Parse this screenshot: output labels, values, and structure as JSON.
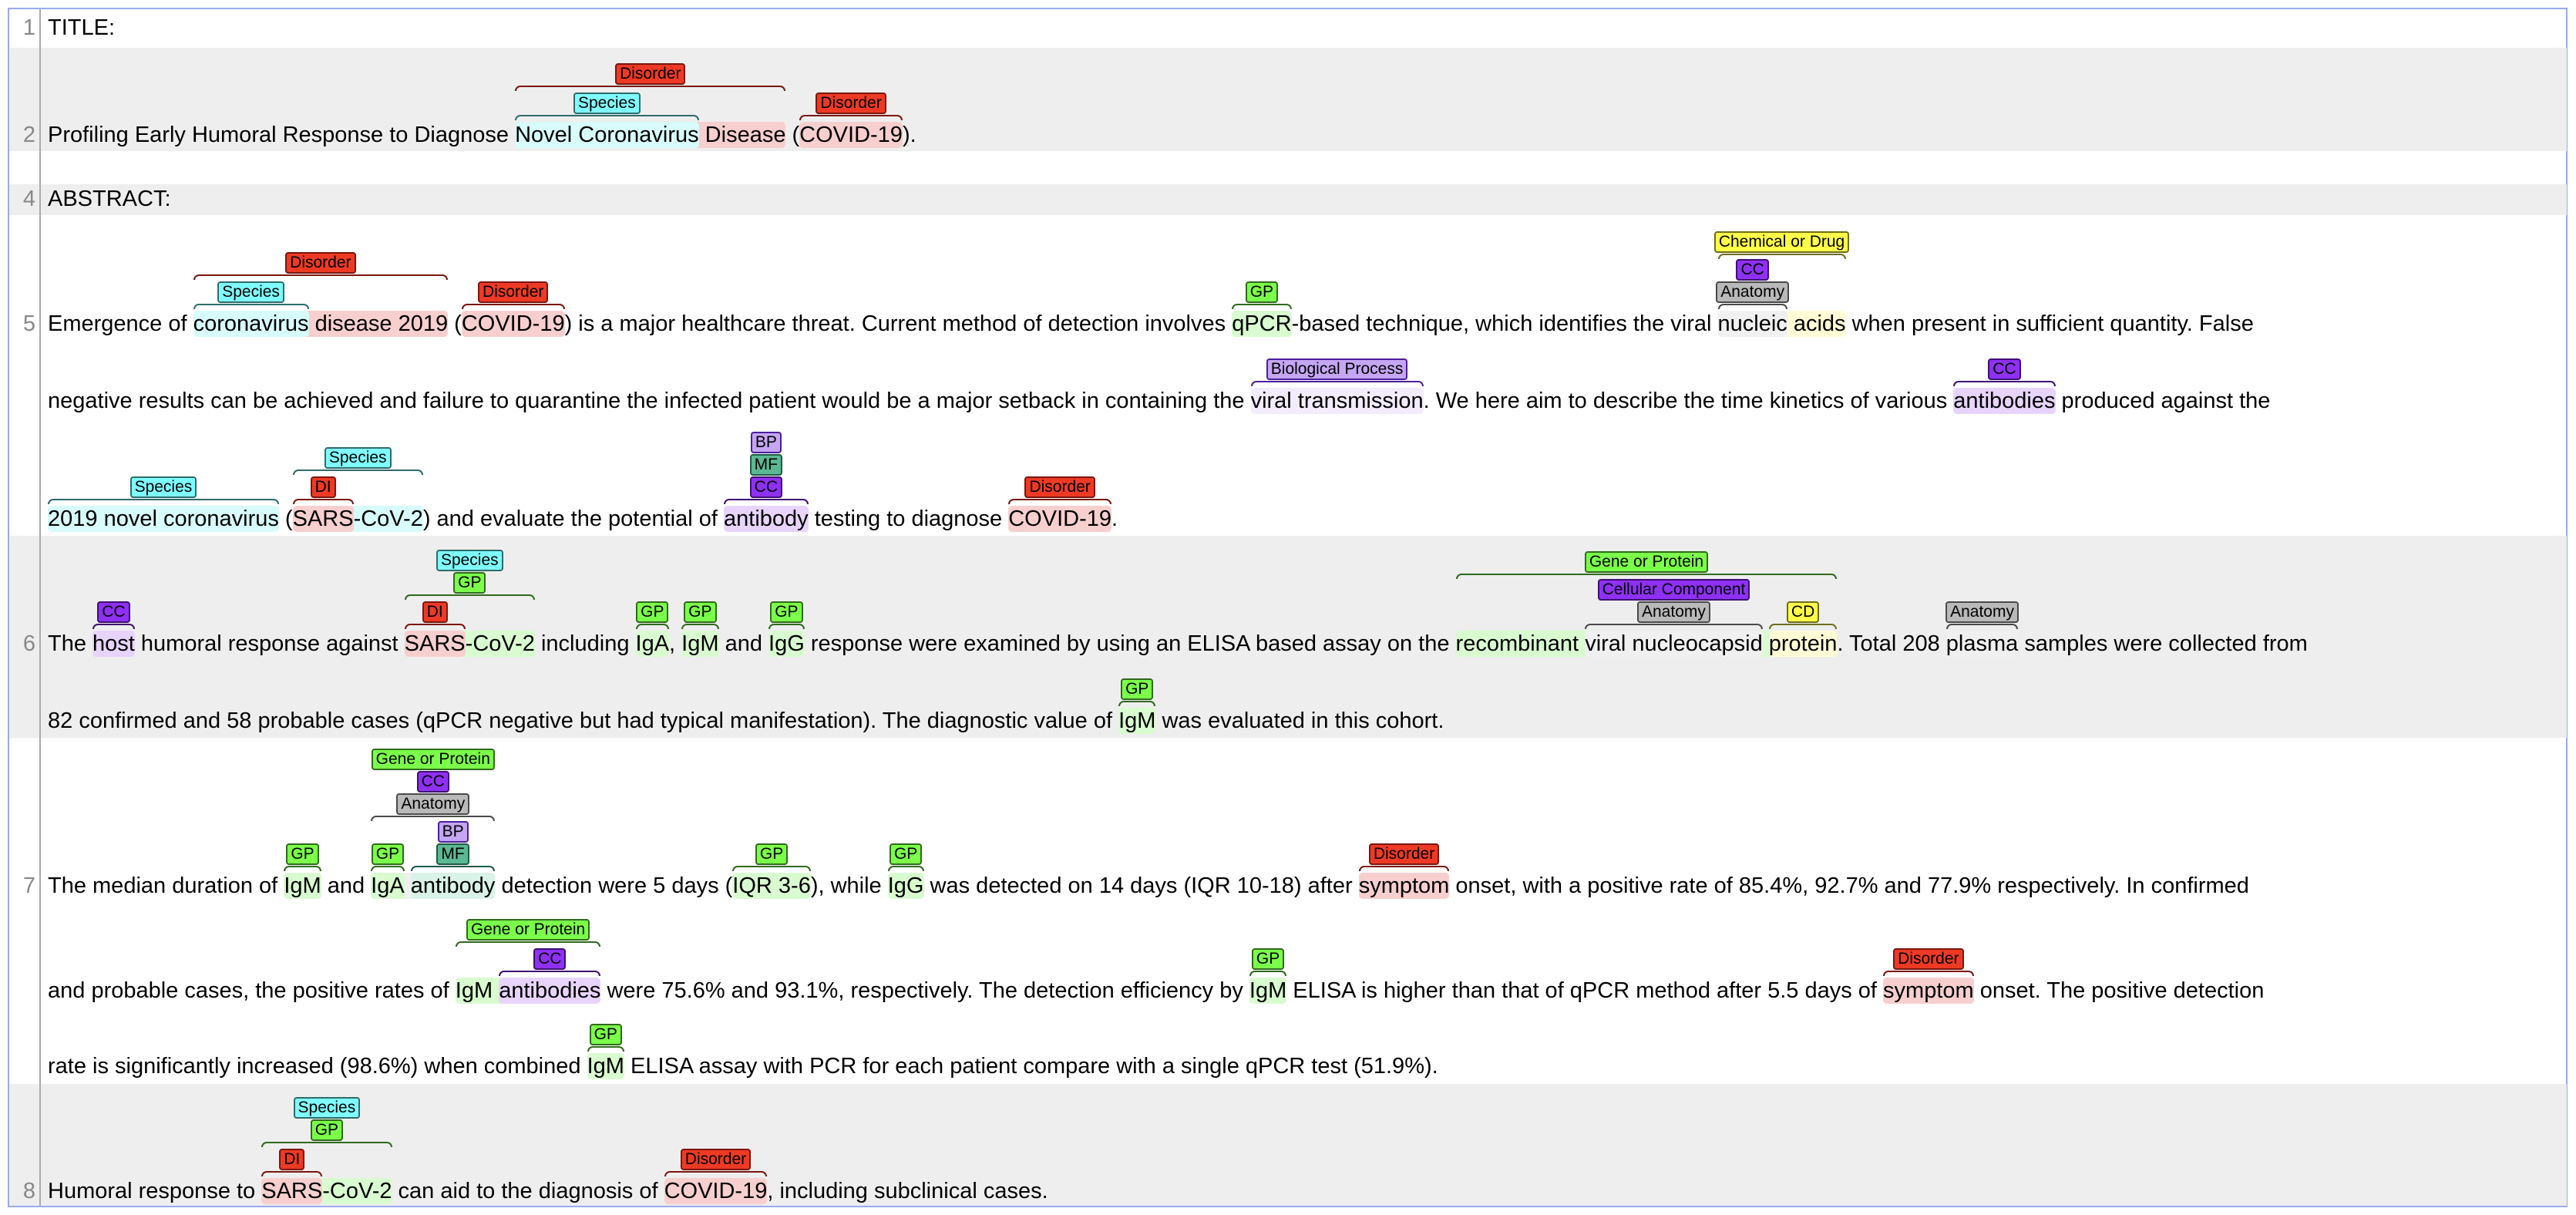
{
  "types": {
    "disorder": {
      "bg": "#ee3a24",
      "border": "#7a160e",
      "hl": "#f7cfcf"
    },
    "species": {
      "bg": "#7ffcfc",
      "border": "#2e6b6b",
      "hl": "#d8fbfb"
    },
    "gp": {
      "bg": "#7bff4a",
      "border": "#2f6a1c",
      "hl": "#d9fbd0"
    },
    "cc": {
      "bg": "#8f30f5",
      "border": "#3e0f73",
      "hl": "#e8d4fb"
    },
    "anatomy": {
      "bg": "#b9b9b9",
      "border": "#4a4a4a",
      "hl": "#f0f0f0"
    },
    "cd": {
      "bg": "#ffff4a",
      "border": "#6d6d1c",
      "hl": "#fffdd6"
    },
    "bp": {
      "bg": "#c4a6f2",
      "border": "#4b1f9c",
      "hl": "#f2ecfd"
    },
    "mf": {
      "bg": "#5cb894",
      "border": "#1f5a44",
      "hl": "#d9f3e8"
    }
  },
  "lines": [
    {
      "num": "1",
      "sublines": [
        [
          "TITLE:"
        ]
      ]
    },
    {
      "num": "2",
      "sublines": [
        [
          "Profiling Early Humoral Response to Diagnose ",
          {
            "labels": [
              {
                "l": "Disorder",
                "c": "disorder"
              }
            ],
            "parts": [
              {
                "labels": [
                  {
                    "l": "Species",
                    "c": "species"
                  }
                ],
                "text": "Novel Coronavirus"
              },
              " Disease"
            ]
          },
          " (",
          {
            "labels": [
              {
                "l": "Disorder",
                "c": "disorder"
              }
            ],
            "text": "COVID-19"
          },
          ")."
        ]
      ]
    },
    {
      "num": "4",
      "sublines": [
        [
          "ABSTRACT:"
        ]
      ]
    },
    {
      "num": "5",
      "sublines": [
        [
          "Emergence of ",
          {
            "labels": [
              {
                "l": "Disorder",
                "c": "disorder"
              }
            ],
            "parts": [
              {
                "labels": [
                  {
                    "l": "Species",
                    "c": "species"
                  }
                ],
                "text": "coronavirus"
              },
              " disease 2019"
            ]
          },
          " (",
          {
            "labels": [
              {
                "l": "Disorder",
                "c": "disorder"
              }
            ],
            "text": "COVID-19"
          },
          ") is a major healthcare threat. Current method of detection involves ",
          {
            "labels": [
              {
                "l": "GP",
                "c": "gp"
              }
            ],
            "text": "qPCR"
          },
          "-based technique, which identifies the viral ",
          {
            "labels": [
              {
                "l": "Chemical or Drug",
                "c": "cd"
              }
            ],
            "parts": [
              {
                "labels": [
                  {
                    "l": "Anatomy",
                    "c": "anatomy"
                  },
                  {
                    "l": "CC",
                    "c": "cc"
                  }
                ],
                "text": "nucleic"
              },
              " acids"
            ]
          },
          "  when present in sufficient quantity. False"
        ],
        [
          "negative results can be achieved and failure to quarantine the infected patient would be a major setback in containing the ",
          {
            "labels": [
              {
                "l": "Biological Process",
                "c": "bp"
              }
            ],
            "text": "viral transmission"
          },
          ". We here aim to describe the time kinetics of various ",
          {
            "labels": [
              {
                "l": "CC",
                "c": "cc"
              }
            ],
            "text": "antibodies"
          },
          " produced against the"
        ],
        [
          {
            "labels": [
              {
                "l": "Species",
                "c": "species"
              }
            ],
            "text": "2019 novel coronavirus"
          },
          " (",
          {
            "labels": [
              {
                "l": "Species",
                "c": "species"
              }
            ],
            "parts": [
              {
                "labels": [
                  {
                    "l": "DI",
                    "c": "disorder"
                  }
                ],
                "text": "SARS"
              },
              "-CoV-2"
            ]
          },
          ") and evaluate the potential of ",
          {
            "labels": [
              {
                "l": "CC",
                "c": "cc"
              },
              {
                "l": "MF",
                "c": "mf"
              },
              {
                "l": "BP",
                "c": "bp"
              }
            ],
            "text": "antibody"
          },
          " testing to diagnose ",
          {
            "labels": [
              {
                "l": "Disorder",
                "c": "disorder"
              }
            ],
            "text": "COVID-19"
          },
          "."
        ]
      ]
    },
    {
      "num": "6",
      "sublines": [
        [
          "The ",
          {
            "labels": [
              {
                "l": "CC",
                "c": "cc"
              }
            ],
            "text": "host"
          },
          " humoral response against ",
          {
            "labels": [
              {
                "l": "GP",
                "c": "gp"
              },
              {
                "l": "Species",
                "c": "species"
              }
            ],
            "parts": [
              {
                "labels": [
                  {
                    "l": "DI",
                    "c": "disorder"
                  }
                ],
                "text": "SARS"
              },
              "-CoV-2"
            ]
          },
          " including ",
          {
            "labels": [
              {
                "l": "GP",
                "c": "gp"
              }
            ],
            "text": "IgA"
          },
          ", ",
          {
            "labels": [
              {
                "l": "GP",
                "c": "gp"
              }
            ],
            "text": "IgM"
          },
          " and ",
          {
            "labels": [
              {
                "l": "GP",
                "c": "gp"
              }
            ],
            "text": "IgG"
          },
          " response were examined by using an ELISA based assay on the ",
          {
            "labels": [
              {
                "l": "Gene or Protein",
                "c": "gp"
              }
            ],
            "parts": [
              "recombinant ",
              {
                "labels": [
                  {
                    "l": "Anatomy",
                    "c": "anatomy"
                  },
                  {
                    "l": "Cellular Component",
                    "c": "cc"
                  }
                ],
                "text": "viral nucleocapsid"
              },
              " ",
              {
                "labels": [
                  {
                    "l": "CD",
                    "c": "cd"
                  }
                ],
                "text": "protein"
              }
            ]
          },
          ". Total 208 ",
          {
            "labels": [
              {
                "l": "Anatomy",
                "c": "anatomy"
              }
            ],
            "text": "plasma"
          },
          " samples were collected from"
        ],
        [
          "82 confirmed and 58 probable cases (qPCR negative but had typical manifestation). The diagnostic value of ",
          {
            "labels": [
              {
                "l": "GP",
                "c": "gp"
              }
            ],
            "text": "IgM"
          },
          " was evaluated in this cohort."
        ]
      ]
    },
    {
      "num": "7",
      "sublines": [
        [
          "The median duration of ",
          {
            "labels": [
              {
                "l": "GP",
                "c": "gp"
              }
            ],
            "text": "IgM"
          },
          " and ",
          {
            "labels": [
              {
                "l": "Anatomy",
                "c": "anatomy"
              },
              {
                "l": "CC",
                "c": "cc"
              },
              {
                "l": "Gene or Protein",
                "c": "gp"
              }
            ],
            "parts": [
              {
                "labels": [
                  {
                    "l": "GP",
                    "c": "gp"
                  }
                ],
                "text": "IgA"
              },
              " ",
              {
                "labels": [
                  {
                    "l": "MF",
                    "c": "mf"
                  },
                  {
                    "l": "BP",
                    "c": "bp"
                  }
                ],
                "text": "antibody"
              }
            ]
          },
          " detection were 5 days (",
          {
            "labels": [
              {
                "l": "GP",
                "c": "gp"
              }
            ],
            "text": "IQR 3-6"
          },
          "), while ",
          {
            "labels": [
              {
                "l": "GP",
                "c": "gp"
              }
            ],
            "text": "IgG"
          },
          " was detected on 14 days (IQR 10-18) after ",
          {
            "labels": [
              {
                "l": "Disorder",
                "c": "disorder"
              }
            ],
            "text": "symptom"
          },
          " onset, with a positive rate of 85.4%, 92.7% and 77.9% respectively. In confirmed"
        ],
        [
          "and probable cases, the positive rates of ",
          {
            "labels": [
              {
                "l": "Gene or Protein",
                "c": "gp"
              }
            ],
            "parts": [
              "IgM ",
              {
                "labels": [
                  {
                    "l": "CC",
                    "c": "cc"
                  }
                ],
                "text": "antibodies"
              }
            ]
          },
          " were 75.6% and 93.1%, respectively. The detection efficiency by ",
          {
            "labels": [
              {
                "l": "GP",
                "c": "gp"
              }
            ],
            "text": "IgM"
          },
          " ELISA is higher than that of qPCR method after 5.5 days of ",
          {
            "labels": [
              {
                "l": "Disorder",
                "c": "disorder"
              }
            ],
            "text": "symptom"
          },
          " onset. The positive detection"
        ],
        [
          "rate is significantly increased (98.6%) when combined ",
          {
            "labels": [
              {
                "l": "GP",
                "c": "gp"
              }
            ],
            "text": "IgM"
          },
          " ELISA assay with PCR for each patient compare with a single qPCR test (51.9%)."
        ]
      ]
    },
    {
      "num": "8",
      "sublines": [
        [
          "Humoral response to ",
          {
            "labels": [
              {
                "l": "GP",
                "c": "gp"
              },
              {
                "l": "Species",
                "c": "species"
              }
            ],
            "parts": [
              {
                "labels": [
                  {
                    "l": "DI",
                    "c": "disorder"
                  }
                ],
                "text": "SARS"
              },
              "-CoV-2"
            ]
          },
          " can aid to the diagnosis of ",
          {
            "labels": [
              {
                "l": "Disorder",
                "c": "disorder"
              }
            ],
            "text": "COVID-19"
          },
          ", including subclinical cases."
        ]
      ]
    }
  ]
}
